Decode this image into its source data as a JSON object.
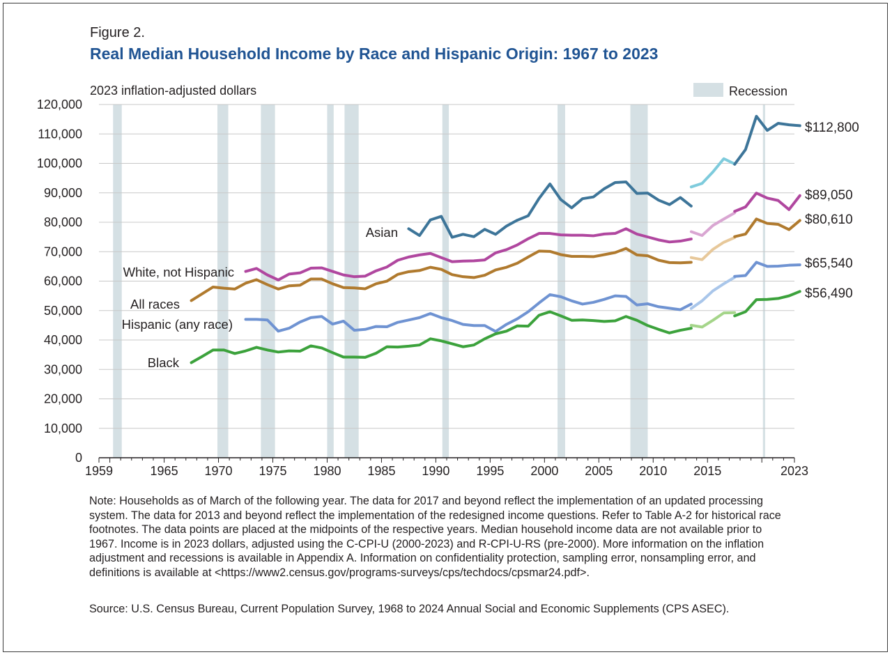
{
  "figure_label": "Figure 2.",
  "title": "Real Median Household Income by Race and Hispanic Origin: 1967 to 2023",
  "note": "Note: Households as of March of the following year. The data for 2017 and beyond reflect the implementation of an updated processing system. The data for 2013 and beyond reflect the implementation of the redesigned income questions. Refer to Table A-2 for historical race footnotes. The data points are placed at the midpoints of the respective years. Median household income data are not available prior to 1967. Income is in 2023 dollars, adjusted using the C-CPI-U (2000-2023) and R-CPI-U-RS (pre-2000). More information on the inflation adjustment and recessions is available in Appendix A. Information on confidentiality protection, sampling error, nonsampling error, and definitions is available at <https://www2.census.gov/programs-surveys/cps/techdocs/cpsmar24.pdf>.",
  "source": "Source: U.S. Census Bureau, Current Population Survey, 1968 to 2024 Annual Social and Economic Supplements (CPS ASEC).",
  "colors": {
    "title": "#205493",
    "recession": "#d5e0e4",
    "grid": "#c8c8c8",
    "asian": "#3d7599",
    "asian_light": "#7ecbdc",
    "white": "#b0479f",
    "white_light": "#d9a6d2",
    "all": "#b07a2e",
    "all_light": "#e7c89a",
    "hispanic": "#6f93d2",
    "hispanic_light": "#a9c6ea",
    "black": "#3ca23c",
    "black_light": "#a5d58a"
  },
  "chart_data": {
    "type": "line",
    "ylabel": "2023 inflation-adjusted dollars",
    "ylim": [
      0,
      120000
    ],
    "xlim": [
      1959,
      2023
    ],
    "y_ticks": [
      "0",
      "10,000",
      "20,000",
      "30,000",
      "40,000",
      "50,000",
      "60,000",
      "70,000",
      "80,000",
      "90,000",
      "100,000",
      "110,000",
      "120,000"
    ],
    "y_tick_values": [
      0,
      10000,
      20000,
      30000,
      40000,
      50000,
      60000,
      70000,
      80000,
      90000,
      100000,
      110000,
      120000
    ],
    "x_ticks": [
      "1959",
      "1965",
      "1970",
      "1975",
      "1980",
      "1985",
      "1990",
      "1995",
      "2000",
      "2005",
      "2010",
      "2015",
      "2023"
    ],
    "x_tick_values": [
      1959,
      1965,
      1970,
      1975,
      1980,
      1985,
      1990,
      1995,
      2000,
      2005,
      2010,
      2015,
      2023
    ],
    "grid": "horizontal",
    "legend": {
      "label": "Recession",
      "placement": "top-right"
    },
    "recessions": [
      [
        1960.3,
        1961.1
      ],
      [
        1969.9,
        1970.9
      ],
      [
        1973.9,
        1975.2
      ],
      [
        1980.0,
        1980.6
      ],
      [
        1981.6,
        1982.9
      ],
      [
        1990.6,
        1991.2
      ],
      [
        2001.2,
        2001.9
      ],
      [
        2007.9,
        2009.5
      ],
      [
        2020.1,
        2020.3
      ]
    ],
    "series": [
      {
        "name": "Asian",
        "color_key": "asian",
        "segments": [
          {
            "style": "main",
            "x": [
              1987,
              1988,
              1989,
              1990,
              1991,
              1992,
              1993,
              1994,
              1995,
              1996,
              1997,
              1998,
              1999,
              2000,
              2001,
              2002,
              2003,
              2004,
              2005,
              2006,
              2007,
              2008,
              2009,
              2010,
              2011,
              2012,
              2013
            ],
            "y": [
              77800,
              75500,
              80800,
              82000,
              74900,
              75900,
              75100,
              77600,
              75900,
              78700,
              80700,
              82200,
              88100,
              93000,
              87700,
              84900,
              88000,
              88600,
              91400,
              93500,
              93700,
              89800,
              89900,
              87500,
              86000,
              88400,
              85500
            ]
          },
          {
            "style": "light",
            "x": [
              2013,
              2014,
              2015,
              2016,
              2017
            ],
            "y": [
              92000,
              93200,
              97100,
              101600,
              99800
            ]
          },
          {
            "style": "main",
            "x": [
              2017,
              2018,
              2019,
              2020,
              2021,
              2022,
              2023
            ],
            "y": [
              99700,
              104700,
              116000,
              111200,
              113600,
              113100,
              112800
            ]
          }
        ]
      },
      {
        "name": "White, not Hispanic",
        "color_key": "white",
        "segments": [
          {
            "style": "main",
            "x": [
              1972,
              1973,
              1974,
              1975,
              1976,
              1977,
              1978,
              1979,
              1980,
              1981,
              1982,
              1983,
              1984,
              1985,
              1986,
              1987,
              1988,
              1989,
              1990,
              1991,
              1992,
              1993,
              1994,
              1995,
              1996,
              1997,
              1998,
              1999,
              2000,
              2001,
              2002,
              2003,
              2004,
              2005,
              2006,
              2007,
              2008,
              2009,
              2010,
              2011,
              2012,
              2013
            ],
            "y": [
              63300,
              64300,
              62100,
              60400,
              62400,
              62800,
              64400,
              64500,
              63300,
              62100,
              61500,
              61700,
              63500,
              64800,
              67100,
              68200,
              68900,
              69400,
              68000,
              66600,
              66800,
              66900,
              67200,
              69600,
              70700,
              72300,
              74400,
              76200,
              76200,
              75700,
              75600,
              75600,
              75400,
              76000,
              76200,
              77800,
              76000,
              75000,
              74000,
              73300,
              73600,
              74300
            ]
          },
          {
            "style": "light",
            "x": [
              2013,
              2014,
              2015,
              2016,
              2017
            ],
            "y": [
              76800,
              75500,
              78900,
              81100,
              83200
            ]
          },
          {
            "style": "main",
            "x": [
              2017,
              2018,
              2019,
              2020,
              2021,
              2022,
              2023
            ],
            "y": [
              83700,
              85200,
              89900,
              88200,
              87400,
              84300,
              89050
            ]
          }
        ]
      },
      {
        "name": "All races",
        "color_key": "all",
        "segments": [
          {
            "style": "main",
            "x": [
              1967,
              1968,
              1969,
              1970,
              1971,
              1972,
              1973,
              1974,
              1975,
              1976,
              1977,
              1978,
              1979,
              1980,
              1981,
              1982,
              1983,
              1984,
              1985,
              1986,
              1987,
              1988,
              1989,
              1990,
              1991,
              1992,
              1993,
              1994,
              1995,
              1996,
              1997,
              1998,
              1999,
              2000,
              2001,
              2002,
              2003,
              2004,
              2005,
              2006,
              2007,
              2008,
              2009,
              2010,
              2011,
              2012,
              2013
            ],
            "y": [
              53400,
              55700,
              58000,
              57600,
              57300,
              59300,
              60500,
              58800,
              57300,
              58400,
              58600,
              60700,
              60700,
              59100,
              57800,
              57700,
              57400,
              59100,
              60000,
              62300,
              63200,
              63600,
              64700,
              64000,
              62200,
              61500,
              61200,
              62000,
              63800,
              64700,
              66100,
              68200,
              70200,
              70100,
              69000,
              68400,
              68400,
              68300,
              69000,
              69700,
              71100,
              68900,
              68600,
              67100,
              66300,
              66200,
              66400
            ]
          },
          {
            "style": "light",
            "x": [
              2013,
              2014,
              2015,
              2016,
              2017
            ],
            "y": [
              68000,
              67300,
              70800,
              73200,
              74800
            ]
          },
          {
            "style": "main",
            "x": [
              2017,
              2018,
              2019,
              2020,
              2021,
              2022,
              2023
            ],
            "y": [
              75100,
              76000,
              81100,
              79600,
              79300,
              77500,
              80610
            ]
          }
        ]
      },
      {
        "name": "Hispanic (any race)",
        "color_key": "hispanic",
        "segments": [
          {
            "style": "main",
            "x": [
              1972,
              1973,
              1974,
              1975,
              1976,
              1977,
              1978,
              1979,
              1980,
              1981,
              1982,
              1983,
              1984,
              1985,
              1986,
              1987,
              1988,
              1989,
              1990,
              1991,
              1992,
              1993,
              1994,
              1995,
              1996,
              1997,
              1998,
              1999,
              2000,
              2001,
              2002,
              2003,
              2004,
              2005,
              2006,
              2007,
              2008,
              2009,
              2010,
              2011,
              2012,
              2013
            ],
            "y": [
              47000,
              47000,
              46800,
              43000,
              44000,
              46100,
              47600,
              48000,
              45400,
              46400,
              43300,
              43600,
              44600,
              44500,
              46000,
              46800,
              47600,
              49000,
              47600,
              46600,
              45300,
              44900,
              44900,
              42900,
              45300,
              47200,
              49600,
              52600,
              55400,
              54700,
              53300,
              52200,
              52800,
              53800,
              55000,
              54800,
              51900,
              52300,
              51300,
              50800,
              50300,
              52200
            ]
          },
          {
            "style": "light",
            "x": [
              2013,
              2014,
              2015,
              2016,
              2017
            ],
            "y": [
              50700,
              53300,
              56700,
              59100,
              61300
            ]
          },
          {
            "style": "main",
            "x": [
              2017,
              2018,
              2019,
              2020,
              2021,
              2022,
              2023
            ],
            "y": [
              61600,
              61900,
              66400,
              65000,
              65100,
              65400,
              65540
            ]
          }
        ]
      },
      {
        "name": "Black",
        "color_key": "black",
        "segments": [
          {
            "style": "main",
            "x": [
              1967,
              1968,
              1969,
              1970,
              1971,
              1972,
              1973,
              1974,
              1975,
              1976,
              1977,
              1978,
              1979,
              1980,
              1981,
              1982,
              1983,
              1984,
              1985,
              1986,
              1987,
              1988,
              1989,
              1990,
              1991,
              1992,
              1993,
              1994,
              1995,
              1996,
              1997,
              1998,
              1999,
              2000,
              2001,
              2002,
              2003,
              2004,
              2005,
              2006,
              2007,
              2008,
              2009,
              2010,
              2011,
              2012,
              2013
            ],
            "y": [
              32300,
              34400,
              36600,
              36600,
              35400,
              36300,
              37500,
              36600,
              35900,
              36300,
              36200,
              38000,
              37300,
              35700,
              34200,
              34200,
              34100,
              35500,
              37700,
              37600,
              37900,
              38300,
              40400,
              39700,
              38700,
              37700,
              38300,
              40400,
              42100,
              43000,
              44800,
              44700,
              48400,
              49600,
              48200,
              46700,
              46800,
              46600,
              46300,
              46500,
              48000,
              46700,
              44900,
              43600,
              42400,
              43300,
              44000
            ]
          },
          {
            "style": "light",
            "x": [
              2013,
              2014,
              2015,
              2016,
              2017
            ],
            "y": [
              45000,
              44400,
              46700,
              49200,
              49300
            ]
          },
          {
            "style": "main",
            "x": [
              2017,
              2018,
              2019,
              2020,
              2021,
              2022,
              2023
            ],
            "y": [
              48200,
              49600,
              53700,
              53800,
              54100,
              55000,
              56490
            ]
          }
        ]
      }
    ],
    "series_labels": [
      {
        "text": "Asian",
        "color_key": "asian"
      },
      {
        "text": "White, not Hispanic",
        "color_key": "white"
      },
      {
        "text": "All races",
        "color_key": "all"
      },
      {
        "text": "Hispanic (any race)",
        "color_key": "hispanic"
      },
      {
        "text": "Black",
        "color_key": "black"
      }
    ],
    "end_labels": [
      {
        "text": "$112,800",
        "value": 112800
      },
      {
        "text": "$89,050",
        "value": 89050
      },
      {
        "text": "$80,610",
        "value": 80610
      },
      {
        "text": "$65,540",
        "value": 65540
      },
      {
        "text": "$56,490",
        "value": 56490
      }
    ]
  }
}
